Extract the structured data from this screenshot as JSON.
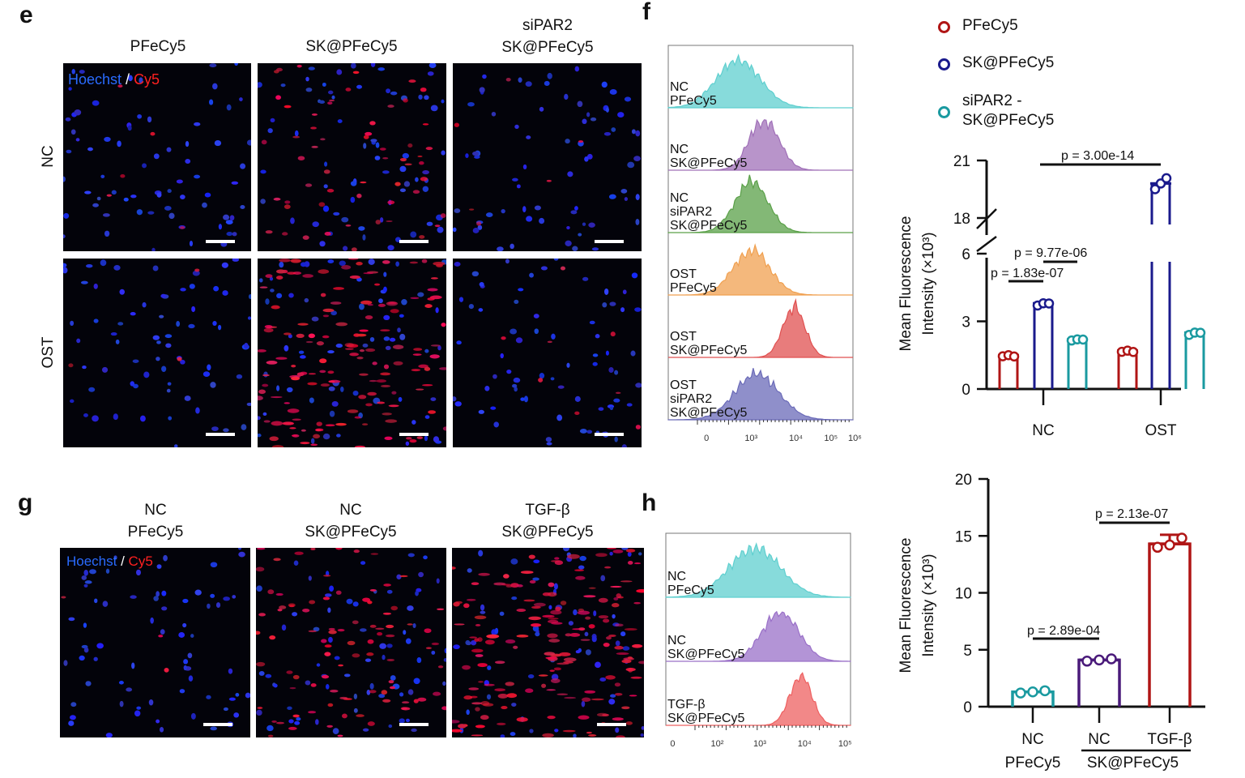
{
  "panels": {
    "e": "e",
    "f": "f",
    "g": "g",
    "h": "h"
  },
  "e": {
    "columns": [
      "PFeCy5",
      "SK@PFeCy5",
      "siPAR2\nSK@PFeCy5"
    ],
    "rows": [
      "NC",
      "OST"
    ],
    "stain": {
      "hoechst": "Hoechst",
      "sep": " / ",
      "cy5": "Cy5"
    },
    "red_levels": [
      [
        0.03,
        0.35,
        0.04
      ],
      [
        0.02,
        0.9,
        0.05
      ]
    ]
  },
  "g": {
    "columns": [
      "NC\nPFeCy5",
      "NC\nSK@PFeCy5",
      "TGF-β\nSK@PFeCy5"
    ],
    "stain": {
      "hoechst": "Hoechst",
      "sep": " / ",
      "cy5": "Cy5"
    },
    "red_levels": [
      0.02,
      0.55,
      1.0
    ]
  },
  "flow_f": {
    "samples": [
      "NC\nPFeCy5",
      "NC\nSK@PFeCy5",
      "NC\nsiPAR2\nSK@PFeCy5",
      "OST\nPFeCy5",
      "OST\nSK@PFeCy5",
      "OST\nsiPAR2\nSK@PFeCy5"
    ],
    "colors": [
      "#5fcfcf",
      "#a070b8",
      "#5aa048",
      "#f0a050",
      "#e05050",
      "#6a6ab8"
    ],
    "x_ticks": [
      "0",
      "10³",
      "10⁴",
      "10⁵",
      "10⁶"
    ]
  },
  "flow_h": {
    "samples": [
      "NC\nPFeCy5",
      "NC\nSK@PFeCy5",
      "TGF-β\nSK@PFeCy5"
    ],
    "colors": [
      "#5fcfcf",
      "#9a70c8",
      "#ee6060"
    ],
    "x_ticks": [
      "0",
      "10²",
      "10³",
      "10⁴",
      "10⁵"
    ]
  },
  "chart_data": [
    {
      "type": "bar",
      "legend": [
        {
          "name": "PFeCy5",
          "color": "#b01515"
        },
        {
          "name": "SK@PFeCy5",
          "color": "#1a1a8c"
        },
        {
          "name": "siPAR2 -\nSK@PFeCy5",
          "color": "#1a9aa0"
        }
      ],
      "categories": [
        "NC",
        "OST"
      ],
      "series": [
        {
          "name": "PFeCy5",
          "values": [
            1.5,
            1.7
          ],
          "points": [
            [
              1.45,
              1.5,
              1.55
            ],
            [
              1.65,
              1.7,
              1.75
            ]
          ]
        },
        {
          "name": "SK@PFeCy5",
          "values": [
            3.8,
            19.8
          ],
          "points": [
            [
              3.7,
              3.8,
              3.9
            ],
            [
              19.5,
              19.8,
              20.2
            ]
          ]
        },
        {
          "name": "siPAR2 -\nSK@PFeCy5",
          "values": [
            2.2,
            2.5
          ],
          "points": [
            [
              2.15,
              2.2,
              2.3
            ],
            [
              2.4,
              2.5,
              2.6
            ]
          ]
        }
      ],
      "ylabel": "Mean Fluorescence\nIntensity (×10³)",
      "y_ticks": [
        "0",
        "3",
        "6",
        "18",
        "21"
      ],
      "axis_break": "6-18",
      "annotations": [
        "p = 1.83e-07",
        "p = 9.77e-06",
        "p = 3.00e-14"
      ]
    },
    {
      "type": "bar",
      "categories": [
        "NC",
        "NC",
        "TGF-β"
      ],
      "group_labels": [
        "PFeCy5",
        "SK@PFeCy5"
      ],
      "series": [
        {
          "values": [
            1.3,
            4.1,
            14.3
          ],
          "points": [
            [
              1.2,
              1.3,
              1.4
            ],
            [
              4.0,
              4.1,
              4.2
            ],
            [
              14.0,
              14.2,
              14.8
            ]
          ],
          "colors": [
            "#1a9aa0",
            "#4a1a7a",
            "#b01515"
          ]
        }
      ],
      "ylabel": "Mean Fluorescence\nIntensity (×10³)",
      "y_ticks": [
        "0",
        "5",
        "10",
        "15",
        "20"
      ],
      "ylim": [
        0,
        20
      ],
      "annotations": [
        "p = 2.89e-04",
        "p = 2.13e-07"
      ]
    }
  ]
}
